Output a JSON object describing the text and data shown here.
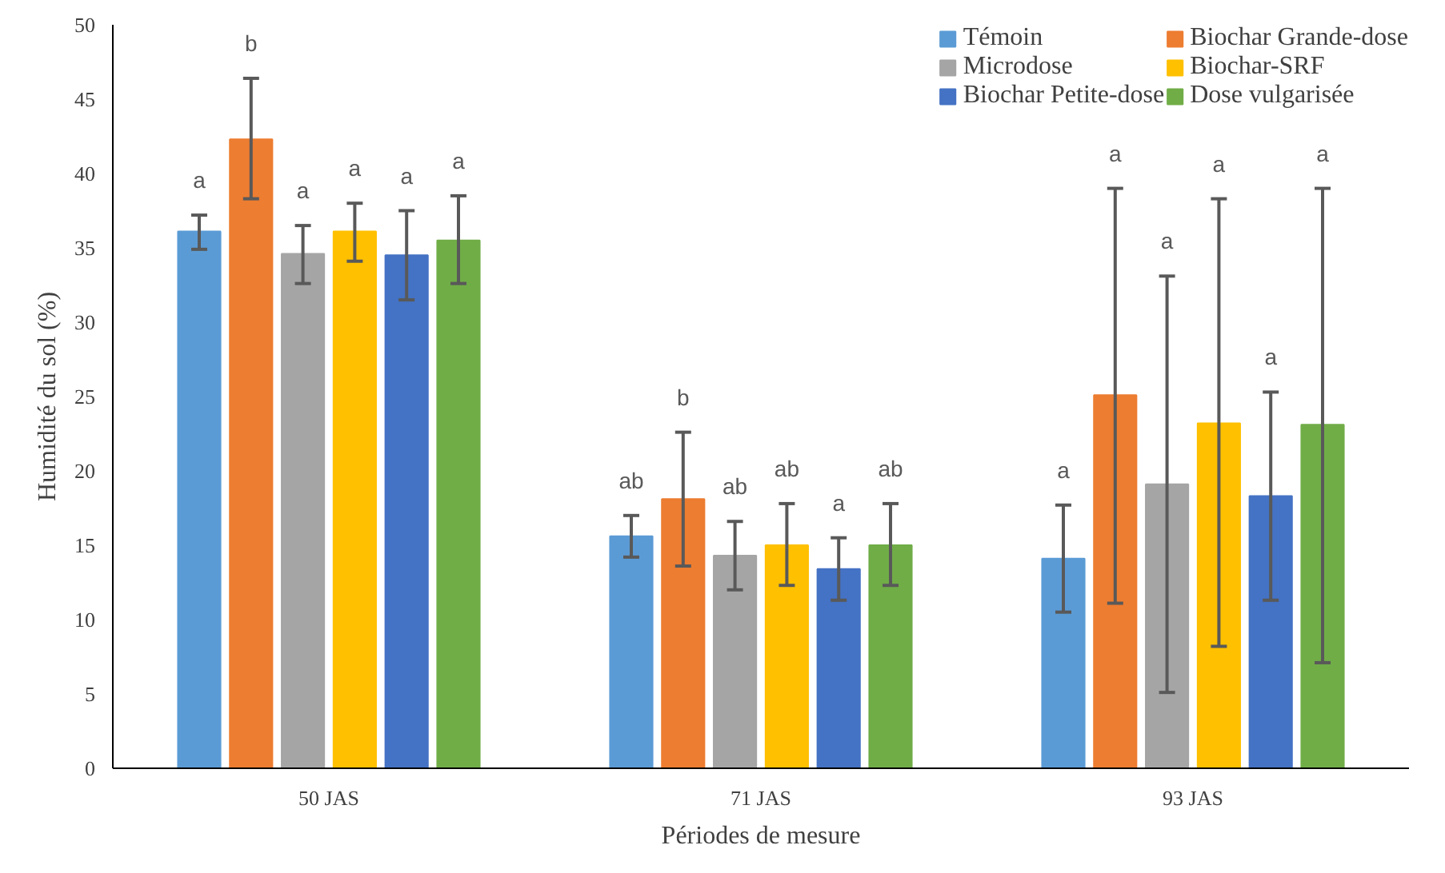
{
  "chart_data": {
    "type": "bar",
    "xlabel": "Périodes de mesure",
    "ylabel": "Humidité du sol (%)",
    "categories": [
      "50 JAS",
      "71 JAS",
      "93 JAS"
    ],
    "ylim": [
      0,
      50
    ],
    "yticks": [
      0,
      5,
      10,
      15,
      20,
      25,
      30,
      35,
      40,
      45,
      50
    ],
    "grid": false,
    "legend": "top right",
    "series": [
      {
        "name": "Témoin",
        "color": "#5b9bd5",
        "values": [
          36.1,
          15.6,
          14.1
        ],
        "errors": [
          [
            34.9,
            37.2
          ],
          [
            14.2,
            17.0
          ],
          [
            10.5,
            17.7
          ]
        ]
      },
      {
        "name": "Biochar Grande-dose",
        "color": "#ed7d31",
        "values": [
          42.3,
          18.1,
          25.1
        ],
        "errors": [
          [
            38.3,
            46.4
          ],
          [
            13.6,
            22.6
          ],
          [
            11.1,
            39.0
          ]
        ]
      },
      {
        "name": "Microdose",
        "color": "#a5a5a5",
        "values": [
          34.6,
          14.3,
          19.1
        ],
        "errors": [
          [
            32.6,
            36.5
          ],
          [
            12.0,
            16.6
          ],
          [
            5.1,
            33.1
          ]
        ]
      },
      {
        "name": "Biochar-SRF",
        "color": "#ffc000",
        "values": [
          36.1,
          15.0,
          23.2
        ],
        "errors": [
          [
            34.1,
            38.0
          ],
          [
            12.3,
            17.8
          ],
          [
            8.2,
            38.3
          ]
        ]
      },
      {
        "name": "Biochar Petite-dose",
        "color": "#4472c4",
        "values": [
          34.5,
          13.4,
          18.3
        ],
        "errors": [
          [
            31.5,
            37.5
          ],
          [
            11.3,
            15.5
          ],
          [
            11.3,
            25.3
          ]
        ]
      },
      {
        "name": "Dose vulgarisée",
        "color": "#70ad47",
        "values": [
          35.5,
          15.0,
          23.1
        ],
        "errors": [
          [
            32.6,
            38.5
          ],
          [
            12.3,
            17.8
          ],
          [
            7.1,
            39.0
          ]
        ]
      }
    ],
    "annotations": [
      "a",
      "b",
      "a",
      "a",
      "a",
      "a",
      "ab",
      "b",
      "ab",
      "ab",
      "a",
      "ab",
      "a",
      "a",
      "a",
      "a",
      "a",
      "a"
    ]
  }
}
